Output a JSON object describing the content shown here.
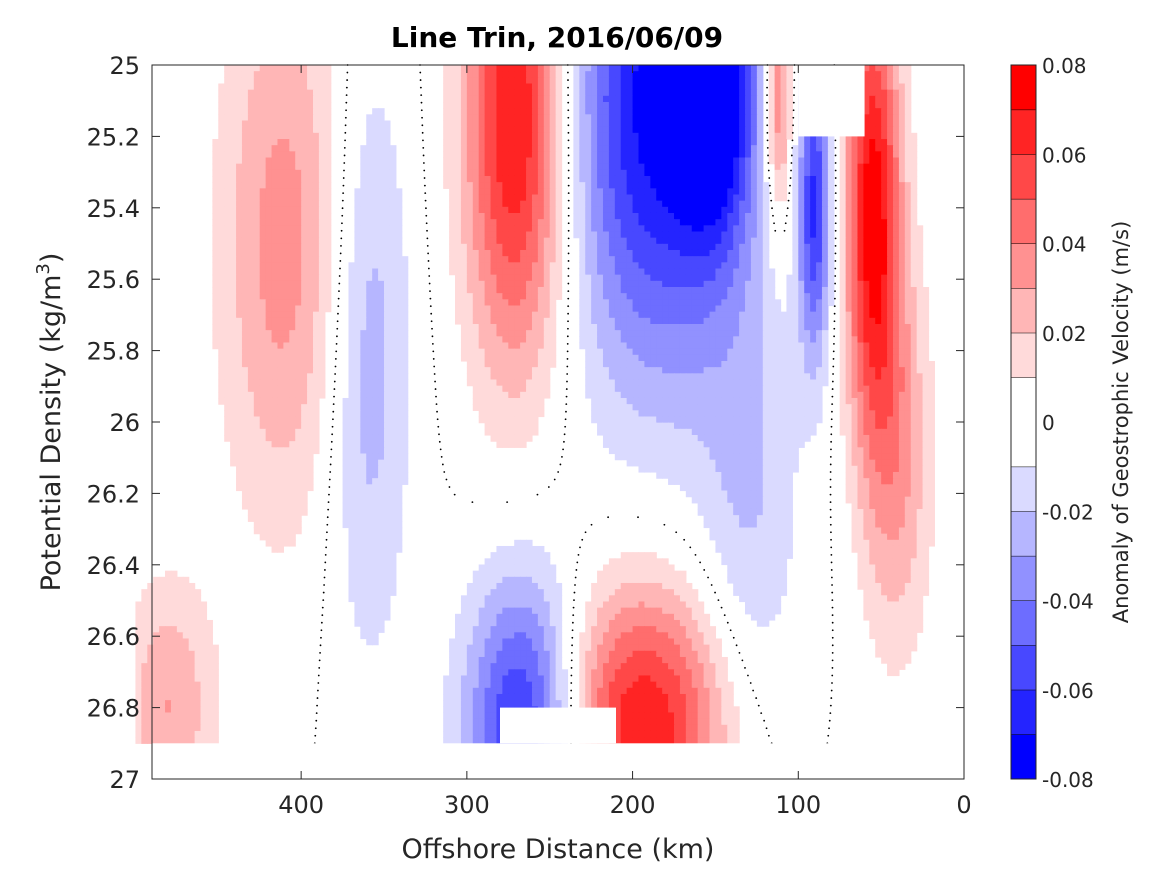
{
  "chart_data": {
    "type": "heatmap",
    "title": "Line Trin, 2016/06/09",
    "xlabel": "Offshore Distance (km)",
    "ylabel": "Potential Density (kg/m^3)",
    "ylabel_main": "Potential Density (kg/m",
    "ylabel_sup": "3",
    "ylabel_close": ")",
    "colorbar_label": "Anomaly of Geostrophic Velocity (m/s)",
    "xlim": [
      490,
      0
    ],
    "ylim": [
      25,
      27
    ],
    "y_reversed": true,
    "xticks": [
      400,
      300,
      200,
      100,
      0
    ],
    "yticks": [
      25,
      25.2,
      25.4,
      25.6,
      25.8,
      26,
      26.2,
      26.4,
      26.6,
      26.8,
      27
    ],
    "ytick_labels": [
      "25",
      "25.2",
      "25.4",
      "25.6",
      "25.8",
      "26",
      "26.2",
      "26.4",
      "26.6",
      "26.8",
      "27"
    ],
    "colorbar": {
      "range": [
        -0.08,
        0.08
      ],
      "levels": [
        -0.08,
        -0.07,
        -0.06,
        -0.05,
        -0.04,
        -0.03,
        -0.02,
        -0.01,
        0.01,
        0.02,
        0.03,
        0.04,
        0.05,
        0.06,
        0.07,
        0.08
      ],
      "tick_values": [
        0.08,
        0.06,
        0.04,
        0.02,
        0,
        -0.02,
        -0.04,
        -0.06,
        -0.08
      ],
      "tick_labels": [
        "0.08",
        "0.06",
        "0.04",
        "0.02",
        "0",
        "-0.02",
        "-0.04",
        "-0.06",
        "-0.08"
      ],
      "colors": [
        "#0000ff",
        "#2424ff",
        "#4848ff",
        "#6d6dff",
        "#9191ff",
        "#b6b6ff",
        "#dadaff",
        "#ffffff",
        "#ffdada",
        "#ffb6b6",
        "#ff9191",
        "#ff6d6d",
        "#ff4848",
        "#ff2424",
        "#ff0000"
      ]
    },
    "grid_x": [
      490,
      470,
      450,
      430,
      410,
      390,
      370,
      350,
      330,
      310,
      290,
      270,
      250,
      230,
      210,
      190,
      170,
      150,
      130,
      110,
      90,
      70,
      50,
      30,
      10
    ],
    "grid_y": [
      25,
      25.1,
      25.2,
      25.3,
      25.4,
      25.5,
      25.6,
      25.7,
      25.8,
      25.9,
      26,
      26.1,
      26.2,
      26.3,
      26.4,
      26.5,
      26.6,
      26.7,
      26.8,
      26.9
    ],
    "features": [
      {
        "kind": "positive_core",
        "x": 270,
        "y": 25.15,
        "amplitude": 0.075,
        "sigma_x": 22,
        "sigma_y": 0.5
      },
      {
        "kind": "negative_core",
        "x": 185,
        "y": 25.1,
        "amplitude": -0.075,
        "sigma_x": 38,
        "sigma_y": 0.55
      },
      {
        "kind": "negative_core",
        "x": 150,
        "y": 25.05,
        "amplitude": -0.06,
        "sigma_x": 16,
        "sigma_y": 0.3
      },
      {
        "kind": "positive_core",
        "x": 55,
        "y": 25.4,
        "amplitude": 0.075,
        "sigma_x": 12,
        "sigma_y": 0.45
      },
      {
        "kind": "negative_core",
        "x": 90,
        "y": 25.4,
        "amplitude": -0.06,
        "sigma_x": 7,
        "sigma_y": 0.3
      },
      {
        "kind": "positive_core",
        "x": 112,
        "y": 25.1,
        "amplitude": 0.05,
        "sigma_x": 6,
        "sigma_y": 0.25
      },
      {
        "kind": "positive_band",
        "x": 410,
        "y": 25.5,
        "amplitude": 0.035,
        "sigma_x": 28,
        "sigma_y": 0.55
      },
      {
        "kind": "negative_band",
        "x": 360,
        "y": 25.8,
        "amplitude": -0.028,
        "sigma_x": 18,
        "sigma_y": 0.6
      },
      {
        "kind": "negative_core",
        "x": 265,
        "y": 26.85,
        "amplitude": -0.07,
        "sigma_x": 25,
        "sigma_y": 0.3
      },
      {
        "kind": "positive_core",
        "x": 195,
        "y": 26.85,
        "amplitude": 0.07,
        "sigma_x": 38,
        "sigma_y": 0.28
      },
      {
        "kind": "positive_edge",
        "x": 480,
        "y": 26.8,
        "amplitude": 0.03,
        "sigma_x": 20,
        "sigma_y": 0.25
      },
      {
        "kind": "positive_band",
        "x": 40,
        "y": 26.1,
        "amplitude": 0.03,
        "sigma_x": 15,
        "sigma_y": 0.4
      },
      {
        "kind": "negative_band",
        "x": 130,
        "y": 26.3,
        "amplitude": -0.02,
        "sigma_x": 22,
        "sigma_y": 0.5
      }
    ],
    "masked_regions": [
      {
        "description": "no data below sampled depth",
        "y_from": 26.9,
        "y_to": 27
      },
      {
        "description": "blank patch near surface",
        "x_from": 100,
        "x_to": 60,
        "y_from": 25,
        "y_to": 25.2
      },
      {
        "description": "blank patch at bottom",
        "x_from": 280,
        "x_to": 210,
        "y_from": 26.8,
        "y_to": 26.9
      }
    ]
  }
}
